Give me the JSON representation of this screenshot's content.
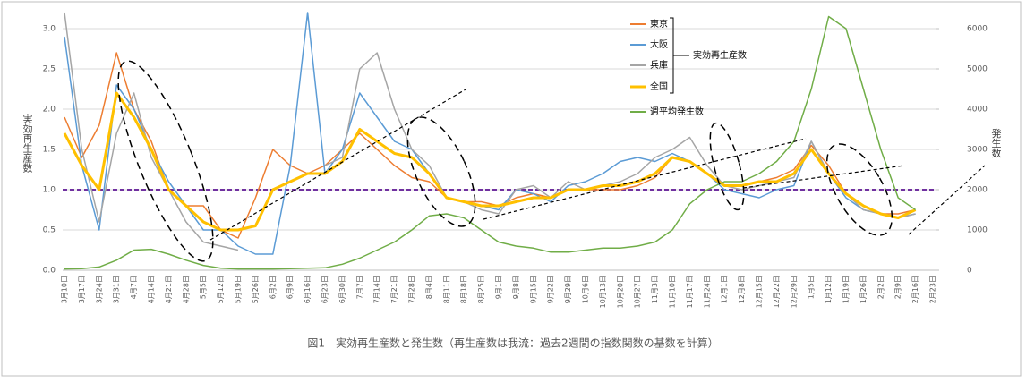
{
  "chart_data": {
    "type": "line",
    "caption": "図1　実効再生産数と発生数（再生産数は我流：過去2週間の指数関数の基数を計算）",
    "ylabel": "実効再生産数",
    "y2label": "発生数",
    "legend_group_label": "実効再生産数",
    "categories": [
      "3月10日",
      "3月17日",
      "3月24日",
      "3月31日",
      "4月7日",
      "4月14日",
      "4月21日",
      "4月28日",
      "5月5日",
      "5月12日",
      "5月19日",
      "5月26日",
      "6月2日",
      "6月9日",
      "6月16日",
      "6月23日",
      "6月30日",
      "7月7日",
      "7月14日",
      "7月21日",
      "7月28日",
      "8月4日",
      "8月11日",
      "8月18日",
      "8月25日",
      "9月1日",
      "9月8日",
      "9月15日",
      "9月22日",
      "9月29日",
      "10月6日",
      "10月13日",
      "10月20日",
      "10月27日",
      "11月3日",
      "11月10日",
      "11月17日",
      "11月24日",
      "12月1日",
      "12月8日",
      "12月15日",
      "12月22日",
      "12月29日",
      "1月5日",
      "1月12日",
      "1月19日",
      "1月26日",
      "2月2日",
      "2月9日",
      "2月16日",
      "2月23日"
    ],
    "ylim": [
      0,
      3.2
    ],
    "yticks": [
      {
        "value": 0,
        "label": "0.0"
      },
      {
        "value": 0.5,
        "label": "0.5"
      },
      {
        "value": 1,
        "label": "1.0"
      },
      {
        "value": 1.5,
        "label": "1.5"
      },
      {
        "value": 2,
        "label": "2.0"
      },
      {
        "value": 2.5,
        "label": "2.5"
      },
      {
        "value": 3,
        "label": "3.0"
      }
    ],
    "y2lim": [
      0,
      6400
    ],
    "y2ticks": [
      0,
      1000,
      2000,
      3000,
      4000,
      5000,
      6000
    ],
    "grid": true,
    "reference_line": {
      "value": 1.0,
      "color": "#7030a0"
    },
    "series": [
      {
        "name": "東京",
        "color": "#ed7d31",
        "values": [
          1.9,
          1.4,
          1.8,
          2.7,
          2.0,
          1.6,
          1.0,
          0.8,
          0.8,
          0.5,
          0.4,
          0.9,
          1.5,
          1.3,
          1.2,
          1.3,
          1.5,
          1.7,
          1.5,
          1.3,
          1.15,
          1.1,
          0.9,
          0.85,
          0.85,
          0.8,
          0.9,
          0.95,
          0.9,
          1.0,
          1.0,
          1.0,
          1.0,
          1.05,
          1.15,
          1.4,
          1.35,
          1.2,
          1.05,
          1.05,
          1.1,
          1.15,
          1.25,
          1.55,
          1.3,
          0.95,
          0.8,
          0.7,
          0.7,
          0.75,
          null
        ]
      },
      {
        "name": "大阪",
        "color": "#5b9bd5",
        "values": [
          2.9,
          1.3,
          0.5,
          2.3,
          2.0,
          1.5,
          1.1,
          0.8,
          0.5,
          0.5,
          0.3,
          0.2,
          0.2,
          1.3,
          3.2,
          1.2,
          1.5,
          2.2,
          1.9,
          1.6,
          1.5,
          1.2,
          0.9,
          0.85,
          0.8,
          0.75,
          1.0,
          0.95,
          0.85,
          1.05,
          1.1,
          1.2,
          1.35,
          1.4,
          1.35,
          1.45,
          1.35,
          1.2,
          1.0,
          0.95,
          0.9,
          1.0,
          1.05,
          1.6,
          1.2,
          0.9,
          0.75,
          0.7,
          0.65,
          0.7,
          null
        ]
      },
      {
        "name": "兵庫",
        "color": "#a5a5a5",
        "values": [
          3.2,
          1.5,
          0.6,
          1.7,
          2.2,
          1.4,
          1.0,
          0.6,
          0.35,
          0.3,
          0.25,
          null,
          null,
          null,
          null,
          1.3,
          1.4,
          2.5,
          2.7,
          2.0,
          1.5,
          1.3,
          0.9,
          0.85,
          0.75,
          0.7,
          1.0,
          1.05,
          0.9,
          1.1,
          1.0,
          1.05,
          1.1,
          1.2,
          1.4,
          1.5,
          1.65,
          1.3,
          1.05,
          1.0,
          1.05,
          1.1,
          1.15,
          1.6,
          1.2,
          0.95,
          0.75,
          0.7,
          0.65,
          0.7,
          null
        ]
      },
      {
        "name": "全国",
        "color": "#ffc000",
        "width": 3,
        "values": [
          1.7,
          1.3,
          1.0,
          2.2,
          1.9,
          1.5,
          1.0,
          0.8,
          0.6,
          0.5,
          0.5,
          0.55,
          1.0,
          1.1,
          1.2,
          1.2,
          1.35,
          1.75,
          1.6,
          1.45,
          1.4,
          1.2,
          0.9,
          0.85,
          0.8,
          0.8,
          0.85,
          0.9,
          0.9,
          1.0,
          1.0,
          1.05,
          1.05,
          1.1,
          1.2,
          1.4,
          1.35,
          1.2,
          1.05,
          1.05,
          1.1,
          1.1,
          1.2,
          1.5,
          1.2,
          0.95,
          0.8,
          0.7,
          0.65,
          0.75,
          null
        ]
      },
      {
        "name": "週平均発生数",
        "color": "#70ad47",
        "axis": "y2",
        "values": [
          30,
          40,
          80,
          250,
          500,
          520,
          400,
          250,
          120,
          50,
          30,
          30,
          30,
          40,
          50,
          60,
          150,
          300,
          500,
          700,
          1000,
          1350,
          1400,
          1300,
          1000,
          700,
          600,
          550,
          450,
          450,
          500,
          550,
          550,
          600,
          700,
          1000,
          1650,
          2000,
          2200,
          2200,
          2400,
          2700,
          3200,
          4500,
          6300,
          6000,
          4500,
          3000,
          1800,
          1500,
          null
        ]
      }
    ]
  }
}
